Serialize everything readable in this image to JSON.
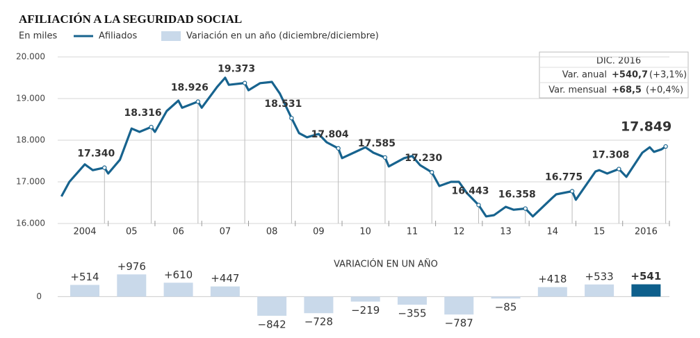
{
  "chart_data": [
    {
      "type": "line",
      "title": "AFILIACIÓN A LA SEGURIDAD SOCIAL",
      "subtitle": "En miles",
      "x": [
        2004,
        2004.17,
        2004.5,
        2004.67,
        2004.92,
        2005,
        2005.25,
        2005.5,
        2005.67,
        2005.92,
        2006,
        2006.25,
        2006.5,
        2006.58,
        2006.92,
        2007,
        2007.33,
        2007.5,
        2007.58,
        2007.92,
        2008,
        2008.25,
        2008.5,
        2008.67,
        2008.92,
        2009.08,
        2009.25,
        2009.5,
        2009.67,
        2009.92,
        2010,
        2010.25,
        2010.5,
        2010.67,
        2010.92,
        2011,
        2011.33,
        2011.5,
        2011.67,
        2011.92,
        2012.08,
        2012.33,
        2012.5,
        2012.67,
        2012.92,
        2013.08,
        2013.25,
        2013.5,
        2013.67,
        2013.92,
        2014.08,
        2014.5,
        2014.58,
        2014.92,
        2015,
        2015.42,
        2015.5,
        2015.67,
        2015.92,
        2016.08,
        2016.42,
        2016.58,
        2016.67,
        2016.83,
        2016.92
      ],
      "series": [
        {
          "name": "Afiliados",
          "color": "#17638e",
          "values": [
            16650,
            17000,
            17420,
            17280,
            17340,
            17200,
            17530,
            18280,
            18200,
            18316,
            18200,
            18700,
            18950,
            18780,
            18926,
            18780,
            19280,
            19500,
            19330,
            19373,
            19200,
            19370,
            19400,
            19120,
            18531,
            18170,
            18070,
            18150,
            17950,
            17804,
            17570,
            17700,
            17830,
            17700,
            17585,
            17370,
            17570,
            17620,
            17400,
            17230,
            16900,
            17000,
            17000,
            16730,
            16443,
            16170,
            16200,
            16400,
            16330,
            16358,
            16170,
            16620,
            16700,
            16775,
            16570,
            17250,
            17280,
            17200,
            17308,
            17120,
            17700,
            17830,
            17720,
            17780,
            17849
          ],
          "value_labels": [
            null,
            null,
            null,
            null,
            "17.340",
            null,
            null,
            null,
            null,
            "18.316",
            null,
            null,
            null,
            null,
            "18.926",
            null,
            null,
            null,
            null,
            "19.373",
            null,
            null,
            null,
            null,
            "18.531",
            null,
            null,
            null,
            null,
            "17.804",
            null,
            null,
            null,
            null,
            "17.585",
            null,
            null,
            null,
            null,
            "17.230",
            null,
            null,
            null,
            null,
            "16.443",
            null,
            null,
            null,
            null,
            "16.358",
            null,
            null,
            null,
            "16.775",
            null,
            null,
            null,
            null,
            "17.308",
            null,
            null,
            null,
            null,
            null,
            "17.849"
          ]
        }
      ],
      "xlim": [
        2003.92,
        2017
      ],
      "xticks": [
        {
          "value": 2004.5,
          "label": "2004"
        },
        {
          "value": 2005.5,
          "label": "05"
        },
        {
          "value": 2006.5,
          "label": "06"
        },
        {
          "value": 2007.5,
          "label": "07"
        },
        {
          "value": 2008.5,
          "label": "08"
        },
        {
          "value": 2009.5,
          "label": "09"
        },
        {
          "value": 2010.5,
          "label": "10"
        },
        {
          "value": 2011.5,
          "label": "11"
        },
        {
          "value": 2012.5,
          "label": "12"
        },
        {
          "value": 2013.5,
          "label": "13"
        },
        {
          "value": 2014.5,
          "label": "14"
        },
        {
          "value": 2015.5,
          "label": "15"
        },
        {
          "value": 2016.5,
          "label": "2016"
        }
      ],
      "ylim": [
        16000,
        20000
      ],
      "yticks": [
        {
          "value": 16000,
          "label": "16.000"
        },
        {
          "value": 17000,
          "label": "17.000"
        },
        {
          "value": 18000,
          "label": "18.000"
        },
        {
          "value": 19000,
          "label": "19.000"
        },
        {
          "value": 20000,
          "label": "20.000"
        }
      ],
      "grid": true,
      "info_box": {
        "title": "DIC. 2016",
        "rows": [
          [
            "Var. anual",
            "+540,7",
            "(+3,1%)"
          ],
          [
            "Var. mensual",
            "+68,5",
            "(+0,4%)"
          ]
        ]
      }
    },
    {
      "type": "bar",
      "title": "VARIACIÓN EN UN AÑO",
      "series": [
        {
          "name": "Variación en un año (diciembre/diciembre)",
          "colors": [
            "#c9d9ea",
            "#c9d9ea",
            "#c9d9ea",
            "#c9d9ea",
            "#c9d9ea",
            "#c9d9ea",
            "#c9d9ea",
            "#c9d9ea",
            "#c9d9ea",
            "#c9d9ea",
            "#c9d9ea",
            "#c9d9ea",
            "#0e5f8c"
          ],
          "values": [
            514,
            976,
            610,
            447,
            -842,
            -728,
            -219,
            -355,
            -787,
            -85,
            418,
            533,
            541
          ],
          "value_labels": [
            "+514",
            "+976",
            "+610",
            "+447",
            "−842",
            "−728",
            "−219",
            "−355",
            "−787",
            "−85",
            "+418",
            "+533",
            "+541"
          ]
        }
      ],
      "ylim": [
        -1300,
        1700
      ],
      "yticks": [
        0
      ]
    }
  ]
}
